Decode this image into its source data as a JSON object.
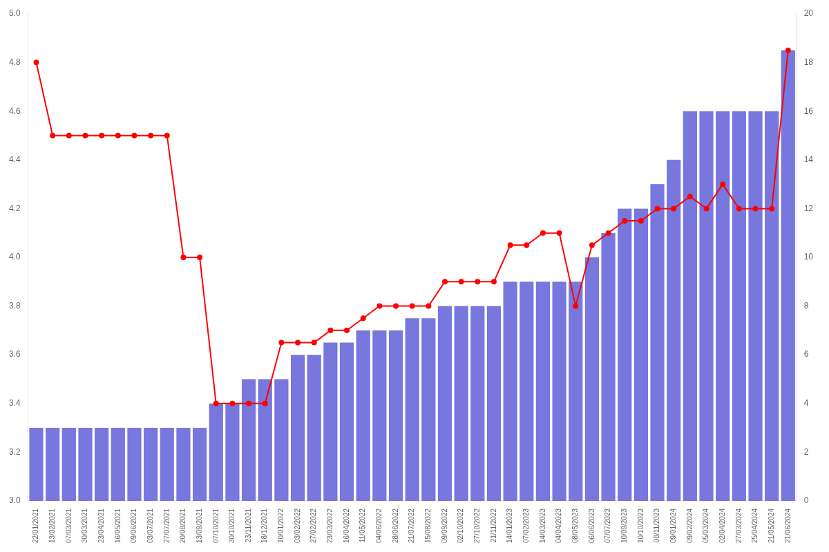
{
  "chart_data": {
    "type": "bar",
    "categories": [
      "22/01/2021",
      "13/02/2021",
      "07/03/2021",
      "30/03/2021",
      "23/04/2021",
      "16/05/2021",
      "09/06/2021",
      "03/07/2021",
      "27/07/2021",
      "20/08/2021",
      "13/09/2021",
      "07/10/2021",
      "30/10/2021",
      "23/11/2021",
      "18/12/2021",
      "10/01/2022",
      "03/02/2022",
      "27/02/2022",
      "23/03/2022",
      "16/04/2022",
      "11/05/2022",
      "04/06/2022",
      "28/06/2022",
      "21/07/2022",
      "15/08/2022",
      "09/09/2022",
      "02/10/2022",
      "27/10/2022",
      "21/11/2022",
      "14/01/2023",
      "07/02/2023",
      "14/03/2023",
      "04/04/2023",
      "08/05/2023",
      "06/06/2023",
      "07/07/2023",
      "10/09/2023",
      "10/10/2023",
      "08/11/2023",
      "09/01/2024",
      "09/02/2024",
      "05/03/2024",
      "02/04/2024",
      "27/03/2024",
      "25/04/2024",
      "21/05/2024",
      "21/06/2024"
    ],
    "series": [
      {
        "type": "bar",
        "color": "#7777dd",
        "values": [
          3.3,
          3.3,
          3.3,
          3.3,
          3.3,
          3.3,
          3.3,
          3.3,
          3.3,
          3.3,
          3.3,
          3.4,
          3.4,
          3.5,
          3.5,
          3.5,
          3.6,
          3.6,
          3.65,
          3.65,
          3.7,
          3.7,
          3.7,
          3.75,
          3.75,
          3.8,
          3.8,
          3.8,
          3.8,
          3.9,
          3.9,
          3.9,
          3.9,
          3.9,
          4.0,
          4.1,
          4.2,
          4.2,
          4.3,
          4.4,
          4.6,
          4.6,
          4.6,
          4.6,
          4.6,
          4.6,
          4.85
        ]
      },
      {
        "type": "line",
        "color": "#ff0000",
        "marker": "circle",
        "line_style": "solid",
        "values": [
          4.8,
          4.5,
          4.5,
          4.5,
          4.5,
          4.5,
          4.5,
          4.5,
          4.5,
          4.0,
          4.0,
          3.4,
          3.4,
          3.4,
          3.4,
          3.65,
          3.65,
          3.65,
          3.7,
          3.7,
          3.75,
          3.8,
          3.8,
          3.8,
          3.8,
          3.9,
          3.9,
          3.9,
          3.9,
          4.05,
          4.05,
          4.1,
          4.1,
          3.8,
          4.05,
          4.1,
          4.15,
          4.15,
          4.2,
          4.2,
          4.25,
          4.2,
          4.3,
          4.2,
          4.2,
          4.2,
          4.85
        ]
      }
    ],
    "ylim": [
      3.0,
      5.0
    ],
    "yticks": [
      {
        "value": 3.0,
        "label": "3.0"
      },
      3.2,
      3.4,
      3.6,
      3.8,
      {
        "value": 4.0,
        "label": "4.0"
      },
      4.2,
      4.4,
      4.6,
      4.8,
      {
        "value": 5.0,
        "label": "5.0"
      }
    ],
    "y2lim": [
      0,
      20
    ],
    "y2ticks": [
      0,
      2,
      4,
      6,
      8,
      10,
      12,
      14,
      16,
      18,
      20
    ],
    "grid": false
  }
}
